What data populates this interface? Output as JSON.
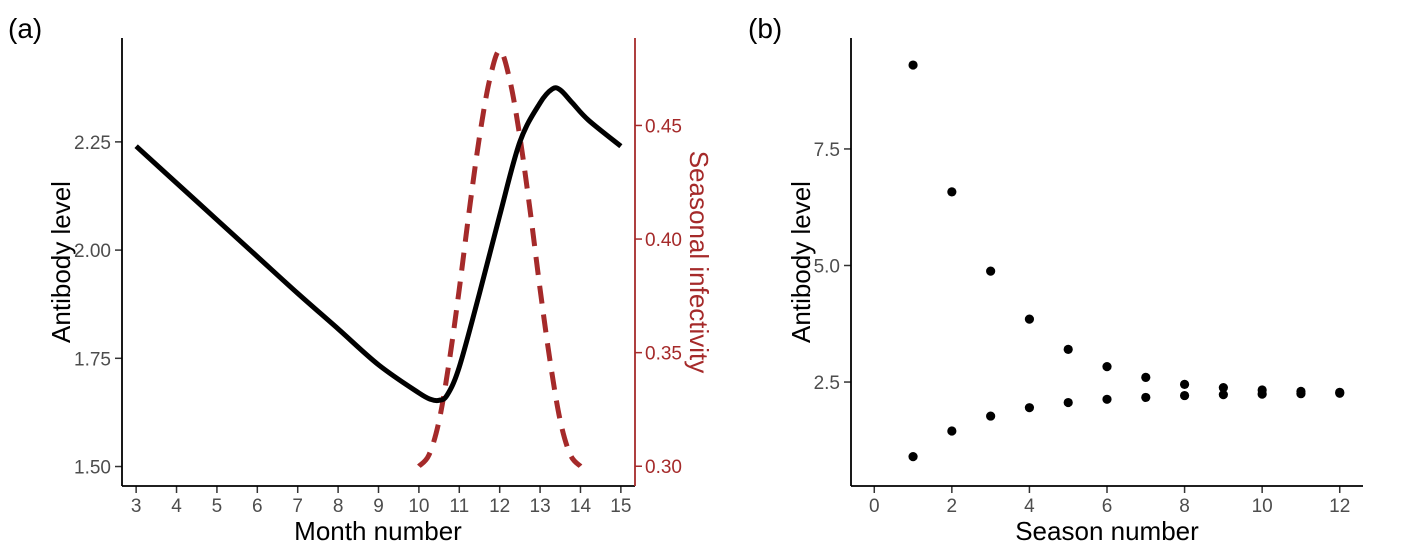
{
  "colors": {
    "antibody": "#000000",
    "infectivity": "#a52a2a",
    "axis": "#000000",
    "tick_text": "#4d4d4d"
  },
  "chart_data": [
    {
      "panel": "(a)",
      "type": "line",
      "xlabel": "Month number",
      "ylabel": "Antibody level",
      "y2label": "Seasonal infectivity",
      "xlim": [
        2.65,
        15.35
      ],
      "ylim": [
        1.455,
        2.49
      ],
      "y2lim": [
        0.2913,
        0.4885
      ],
      "xticks": [
        3,
        4,
        5,
        6,
        7,
        8,
        9,
        10,
        11,
        12,
        13,
        14,
        15
      ],
      "yticks": [
        1.5,
        1.75,
        2.0,
        2.25
      ],
      "ytick_labels": [
        "1.50",
        "1.75",
        "2.00",
        "2.25"
      ],
      "y2ticks": [
        0.3,
        0.35,
        0.4,
        0.45
      ],
      "y2tick_labels": [
        "0.30",
        "0.35",
        "0.40",
        "0.45"
      ],
      "grid": false,
      "series": [
        {
          "axis": "left",
          "style": "solid",
          "color": "#000000",
          "x": [
            3.0,
            4.0,
            5.0,
            6.0,
            7.0,
            8.0,
            9.0,
            10.0,
            10.3,
            10.5,
            10.7,
            11.0,
            11.5,
            12.0,
            12.5,
            13.0,
            13.3,
            13.5,
            13.8,
            14.2,
            15.0
          ],
          "y": [
            2.24,
            2.155,
            2.07,
            1.985,
            1.9,
            1.818,
            1.735,
            1.67,
            1.655,
            1.653,
            1.665,
            1.73,
            1.9,
            2.08,
            2.25,
            2.34,
            2.372,
            2.37,
            2.34,
            2.3,
            2.24
          ]
        },
        {
          "axis": "right",
          "style": "dashed",
          "color": "#a52a2a",
          "x": [
            10.0,
            10.25,
            10.5,
            10.75,
            11.0,
            11.25,
            11.5,
            11.75,
            12.0,
            12.25,
            12.5,
            12.75,
            13.0,
            13.25,
            13.5,
            13.75,
            14.0
          ],
          "y": [
            0.3,
            0.305,
            0.32,
            0.346,
            0.378,
            0.413,
            0.445,
            0.47,
            0.483,
            0.47,
            0.445,
            0.413,
            0.378,
            0.346,
            0.32,
            0.305,
            0.3
          ]
        }
      ]
    },
    {
      "panel": "(b)",
      "type": "scatter",
      "xlabel": "Season number",
      "ylabel": "Antibody level",
      "xlim": [
        -0.6,
        12.6
      ],
      "ylim": [
        0.27,
        9.88
      ],
      "xticks": [
        0,
        2,
        4,
        6,
        8,
        10,
        12
      ],
      "yticks": [
        2.5,
        5.0,
        7.5
      ],
      "ytick_labels": [
        "2.5",
        "5.0",
        "7.5"
      ],
      "grid": false,
      "series": [
        {
          "color": "#000000",
          "x": [
            1,
            2,
            3,
            4,
            5,
            6,
            7,
            8,
            9,
            10,
            11,
            12
          ],
          "y": [
            9.3,
            6.58,
            4.88,
            3.85,
            3.2,
            2.83,
            2.6,
            2.45,
            2.38,
            2.33,
            2.3,
            2.28
          ]
        },
        {
          "color": "#000000",
          "x": [
            1,
            2,
            3,
            4,
            5,
            6,
            7,
            8,
            9,
            10,
            11,
            12
          ],
          "y": [
            0.9,
            1.45,
            1.77,
            1.95,
            2.06,
            2.13,
            2.17,
            2.21,
            2.23,
            2.24,
            2.25,
            2.26
          ]
        }
      ]
    }
  ]
}
